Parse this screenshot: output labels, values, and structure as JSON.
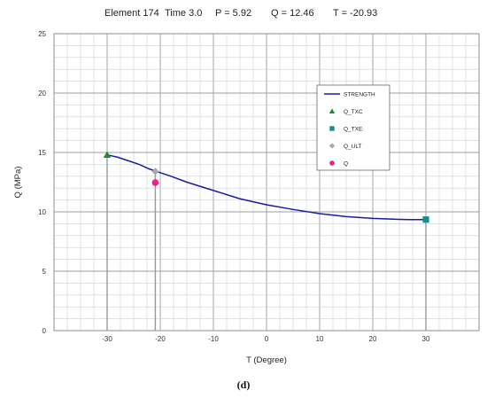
{
  "caption": "(d)",
  "chart_data": {
    "type": "line",
    "title_parts": [
      "Element  174",
      "Time  3.0",
      "P = 5.92",
      "Q =  12.46",
      "T = -20.93"
    ],
    "xlabel": "T (Degree)",
    "ylabel": "Q  (MPa)",
    "xlim": [
      -40,
      40
    ],
    "ylim": [
      0,
      25
    ],
    "x_ticks": [
      "-30",
      "-20",
      "-10",
      "0",
      "10",
      "20",
      "30"
    ],
    "y_ticks": [
      "0",
      "5",
      "10",
      "15",
      "20",
      "25"
    ],
    "grid": true,
    "legend_position": "upper-right",
    "legend": [
      "STRENGTH",
      "Q_TXC",
      "Q_TXE",
      "Q_ULT",
      "Q"
    ],
    "series": [
      {
        "name": "STRENGTH",
        "type": "line",
        "color": "#1a1aa6",
        "x": [
          -30,
          -28,
          -26,
          -24,
          -22,
          -20,
          -18,
          -15,
          -10,
          -5,
          0,
          5,
          10,
          15,
          20,
          25,
          27,
          30
        ],
        "y": [
          14.8,
          14.6,
          14.3,
          14.0,
          13.6,
          13.3,
          13.0,
          12.5,
          11.8,
          11.1,
          10.6,
          10.2,
          9.85,
          9.6,
          9.45,
          9.37,
          9.35,
          9.35
        ]
      },
      {
        "name": "Q_TXC",
        "type": "point",
        "marker": "triangle",
        "color": "#1e8a2e",
        "x": [
          -30
        ],
        "y": [
          14.8
        ]
      },
      {
        "name": "Q_TXE",
        "type": "point",
        "marker": "square",
        "color": "#1a8b8b",
        "x": [
          30
        ],
        "y": [
          9.35
        ]
      },
      {
        "name": "Q_ULT",
        "type": "point",
        "marker": "diamond",
        "color": "#a8a8a8",
        "x": [
          -20.93
        ],
        "y": [
          13.4
        ]
      },
      {
        "name": "Q",
        "type": "point",
        "marker": "circle",
        "color": "#e8248c",
        "x": [
          -20.93
        ],
        "y": [
          12.46
        ]
      }
    ],
    "drop_lines": [
      {
        "x": -30,
        "y": 14.8,
        "color": "#999999"
      },
      {
        "x": -20.93,
        "y": 13.4,
        "color": "#999999"
      },
      {
        "x": 30,
        "y": 9.35,
        "color": "#999999"
      }
    ]
  }
}
